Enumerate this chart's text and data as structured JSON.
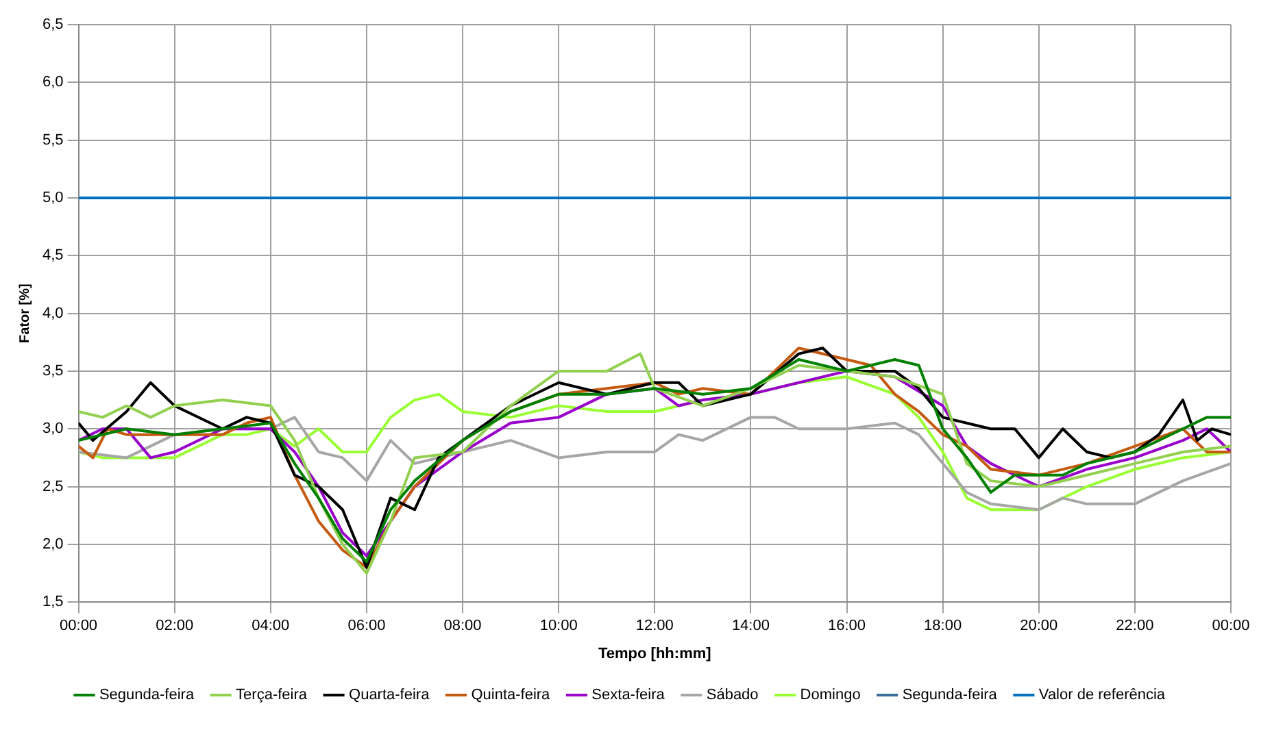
{
  "chart_data": {
    "type": "line",
    "xlabel": "Tempo [hh:mm]",
    "ylabel": "Fator [%]",
    "xlim": [
      0,
      24
    ],
    "xticks": [
      {
        "value": 0,
        "label": "00:00"
      },
      {
        "value": 2,
        "label": "02:00"
      },
      {
        "value": 4,
        "label": "04:00"
      },
      {
        "value": 6,
        "label": "06:00"
      },
      {
        "value": 8,
        "label": "08:00"
      },
      {
        "value": 10,
        "label": "10:00"
      },
      {
        "value": 12,
        "label": "12:00"
      },
      {
        "value": 14,
        "label": "14:00"
      },
      {
        "value": 16,
        "label": "16:00"
      },
      {
        "value": 18,
        "label": "18:00"
      },
      {
        "value": 20,
        "label": "20:00"
      },
      {
        "value": 22,
        "label": "22:00"
      },
      {
        "value": 24,
        "label": "00:00"
      }
    ],
    "ylim": [
      1.5,
      6.5
    ],
    "yticks": [
      {
        "value": 1.5,
        "label": "1,5"
      },
      {
        "value": 2,
        "label": "2,0"
      },
      {
        "value": 2.5,
        "label": "2,5"
      },
      {
        "value": 3,
        "label": "3,0"
      },
      {
        "value": 3.5,
        "label": "3,5"
      },
      {
        "value": 4,
        "label": "4,0"
      },
      {
        "value": 4.5,
        "label": "4,5"
      },
      {
        "value": 5,
        "label": "5,0"
      },
      {
        "value": 5.5,
        "label": "5,5"
      },
      {
        "value": 6,
        "label": "6,0"
      },
      {
        "value": 6.5,
        "label": "6,5"
      }
    ],
    "grid": true,
    "legend": "bottom",
    "marker": "none",
    "line_style": "solid",
    "series": [
      {
        "name": "Segunda-feira",
        "color": "#008000",
        "x": [
          0,
          1,
          2,
          3,
          4,
          4.5,
          5,
          5.5,
          6,
          6.5,
          7,
          8,
          9,
          10,
          11,
          12,
          13,
          14,
          15,
          16,
          17,
          17.5,
          18,
          18.5,
          19,
          19.5,
          20,
          20.5,
          21,
          22,
          23,
          23.5,
          24
        ],
        "values": [
          2.9,
          3.0,
          2.95,
          3.0,
          3.05,
          2.7,
          2.4,
          2.05,
          1.85,
          2.3,
          2.55,
          2.9,
          3.15,
          3.3,
          3.3,
          3.35,
          3.3,
          3.35,
          3.6,
          3.5,
          3.6,
          3.55,
          3.0,
          2.75,
          2.45,
          2.6,
          2.6,
          2.6,
          2.7,
          2.8,
          3.0,
          3.1,
          3.1
        ]
      },
      {
        "name": "Terça-feira",
        "color": "#92d050",
        "x": [
          0,
          0.5,
          1,
          1.5,
          2,
          3,
          4,
          4.5,
          5,
          5.5,
          6,
          6.5,
          7,
          8,
          9,
          10,
          11,
          11.7,
          12,
          13,
          14,
          15,
          16,
          17,
          18,
          18.5,
          19,
          20,
          21,
          22,
          23,
          24
        ],
        "values": [
          3.15,
          3.1,
          3.2,
          3.1,
          3.2,
          3.25,
          3.2,
          2.9,
          2.4,
          2.0,
          1.75,
          2.2,
          2.75,
          2.8,
          3.2,
          3.5,
          3.5,
          3.65,
          3.35,
          3.2,
          3.35,
          3.55,
          3.5,
          3.45,
          3.3,
          2.7,
          2.55,
          2.5,
          2.6,
          2.7,
          2.8,
          2.85
        ]
      },
      {
        "name": "Quarta-feira",
        "color": "#000000",
        "x": [
          0,
          0.3,
          1,
          1.5,
          2,
          3,
          3.5,
          4,
          4.5,
          5,
          5.5,
          6,
          6.5,
          7,
          7.5,
          8,
          9,
          10,
          11,
          12,
          12.5,
          13,
          14,
          15,
          15.5,
          16,
          17,
          17.5,
          18,
          19,
          19.5,
          20,
          20.5,
          21,
          21.5,
          22,
          22.5,
          23,
          23.3,
          23.6,
          24
        ],
        "values": [
          3.05,
          2.9,
          3.15,
          3.4,
          3.2,
          3.0,
          3.1,
          3.05,
          2.6,
          2.5,
          2.3,
          1.8,
          2.4,
          2.3,
          2.75,
          2.9,
          3.2,
          3.4,
          3.3,
          3.4,
          3.4,
          3.2,
          3.3,
          3.65,
          3.7,
          3.5,
          3.5,
          3.35,
          3.1,
          3.0,
          3.0,
          2.75,
          3.0,
          2.8,
          2.75,
          2.8,
          2.95,
          3.25,
          2.9,
          3.0,
          2.95
        ]
      },
      {
        "name": "Quinta-feira",
        "color": "#c55a11",
        "x": [
          0,
          0.3,
          0.6,
          1,
          2,
          3,
          3.5,
          4,
          4.5,
          5,
          5.5,
          6,
          6.5,
          7,
          8,
          9,
          10,
          11,
          12,
          12.5,
          13,
          14,
          14.5,
          15,
          16,
          16.5,
          17,
          17.5,
          18,
          18.5,
          19,
          20,
          21,
          22,
          23,
          23.5,
          24
        ],
        "values": [
          2.85,
          2.75,
          3.0,
          2.95,
          2.95,
          2.95,
          3.05,
          3.1,
          2.6,
          2.2,
          1.95,
          1.8,
          2.2,
          2.5,
          2.9,
          3.15,
          3.3,
          3.35,
          3.4,
          3.3,
          3.35,
          3.3,
          3.5,
          3.7,
          3.6,
          3.55,
          3.3,
          3.15,
          2.95,
          2.85,
          2.65,
          2.6,
          2.7,
          2.85,
          3.0,
          2.8,
          2.8
        ]
      },
      {
        "name": "Sexta-feira",
        "color": "#9900cc",
        "x": [
          0,
          0.5,
          1,
          1.5,
          2,
          3,
          4,
          4.5,
          5,
          5.5,
          6,
          6.5,
          7,
          8,
          9,
          10,
          11,
          12,
          12.5,
          13,
          14,
          15,
          16,
          17,
          18,
          18.5,
          19,
          19.5,
          20,
          21,
          22,
          23,
          23.5,
          24
        ],
        "values": [
          2.9,
          3.0,
          3.0,
          2.75,
          2.8,
          3.0,
          3.0,
          2.8,
          2.5,
          2.1,
          1.9,
          2.2,
          2.5,
          2.8,
          3.05,
          3.1,
          3.3,
          3.35,
          3.2,
          3.25,
          3.3,
          3.4,
          3.5,
          3.45,
          3.2,
          2.85,
          2.7,
          2.6,
          2.5,
          2.65,
          2.75,
          2.9,
          3.0,
          2.8
        ]
      },
      {
        "name": "Sábado",
        "color": "#a6a6a6",
        "x": [
          0,
          1,
          2,
          3,
          4,
          4.5,
          5,
          5.5,
          6,
          6.5,
          7,
          8,
          9,
          10,
          11,
          12,
          12.5,
          13,
          14,
          14.5,
          15,
          16,
          17,
          17.5,
          18,
          18.5,
          19,
          20,
          20.5,
          21,
          22,
          23,
          24
        ],
        "values": [
          2.8,
          2.75,
          2.95,
          3.0,
          3.0,
          3.1,
          2.8,
          2.75,
          2.55,
          2.9,
          2.7,
          2.8,
          2.9,
          2.75,
          2.8,
          2.8,
          2.95,
          2.9,
          3.1,
          3.1,
          3.0,
          3.0,
          3.05,
          2.95,
          2.7,
          2.45,
          2.35,
          2.3,
          2.4,
          2.35,
          2.35,
          2.55,
          2.7
        ]
      },
      {
        "name": "Domingo",
        "color": "#99ff33",
        "x": [
          0,
          0.5,
          1,
          2,
          2.5,
          3,
          3.5,
          4,
          4.5,
          5,
          5.5,
          6,
          6.5,
          7,
          7.5,
          8,
          9,
          10,
          11,
          12,
          13,
          14,
          15,
          16,
          17,
          17.5,
          18,
          18.5,
          19,
          20,
          21,
          22,
          23,
          24
        ],
        "values": [
          2.8,
          2.75,
          2.75,
          2.75,
          2.85,
          2.95,
          2.95,
          3.0,
          2.85,
          3.0,
          2.8,
          2.8,
          3.1,
          3.25,
          3.3,
          3.15,
          3.1,
          3.2,
          3.15,
          3.15,
          3.25,
          3.3,
          3.4,
          3.45,
          3.3,
          3.1,
          2.8,
          2.4,
          2.3,
          2.3,
          2.5,
          2.65,
          2.75,
          2.8
        ]
      },
      {
        "name": "Segunda-feira",
        "color": "#3c6e9c"
      },
      {
        "name": "Valor de referência",
        "color": "#0070c0",
        "x": [
          0,
          24
        ],
        "values": [
          5,
          5
        ]
      }
    ]
  }
}
